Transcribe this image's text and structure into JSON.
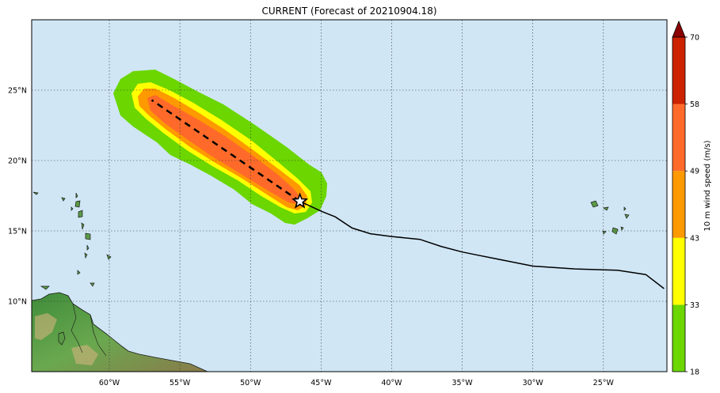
{
  "title": "CURRENT (Forecast of 20210904.18)",
  "map": {
    "lon_range": [
      -65.5,
      -20.5
    ],
    "lat_range": [
      5.0,
      30.0
    ],
    "lon_ticks": [
      {
        "value": -60,
        "label": "60°W"
      },
      {
        "value": -55,
        "label": "55°W"
      },
      {
        "value": -50,
        "label": "50°W"
      },
      {
        "value": -45,
        "label": "45°W"
      },
      {
        "value": -40,
        "label": "40°W"
      },
      {
        "value": -35,
        "label": "35°W"
      },
      {
        "value": -30,
        "label": "30°W"
      },
      {
        "value": -25,
        "label": "25°W"
      }
    ],
    "lat_ticks": [
      {
        "value": 25,
        "label": "25°N"
      },
      {
        "value": 20,
        "label": "20°N"
      },
      {
        "value": 15,
        "label": "15°N"
      },
      {
        "value": 10,
        "label": "10°N"
      }
    ],
    "grid": "dotted",
    "ocean_color": "#d0e6f5",
    "observed_track": [
      [
        -20.7,
        10.9
      ],
      [
        -22.0,
        11.9
      ],
      [
        -24.0,
        12.2
      ],
      [
        -27.0,
        12.3
      ],
      [
        -30.0,
        12.5
      ],
      [
        -32.0,
        12.9
      ],
      [
        -34.0,
        13.3
      ],
      [
        -35.0,
        13.5
      ],
      [
        -36.5,
        13.9
      ],
      [
        -38.0,
        14.4
      ],
      [
        -40.0,
        14.6
      ],
      [
        -41.5,
        14.8
      ],
      [
        -42.8,
        15.2
      ],
      [
        -44.0,
        16.0
      ],
      [
        -45.0,
        16.4
      ],
      [
        -46.5,
        17.1
      ]
    ],
    "forecast_track": [
      [
        -46.5,
        17.1
      ],
      [
        -57.0,
        24.3
      ]
    ],
    "current_position": {
      "lon": -46.5,
      "lat": 17.1,
      "marker": "star"
    }
  },
  "colorbar": {
    "label": "10 m wind speed (m/s)",
    "ticks": [
      "18",
      "33",
      "43",
      "49",
      "58",
      "70"
    ],
    "colors": [
      "#6bd600",
      "#ffff00",
      "#ff9900",
      "#ff6a2a",
      "#cc2200"
    ],
    "extend_color": "#8b0000"
  }
}
